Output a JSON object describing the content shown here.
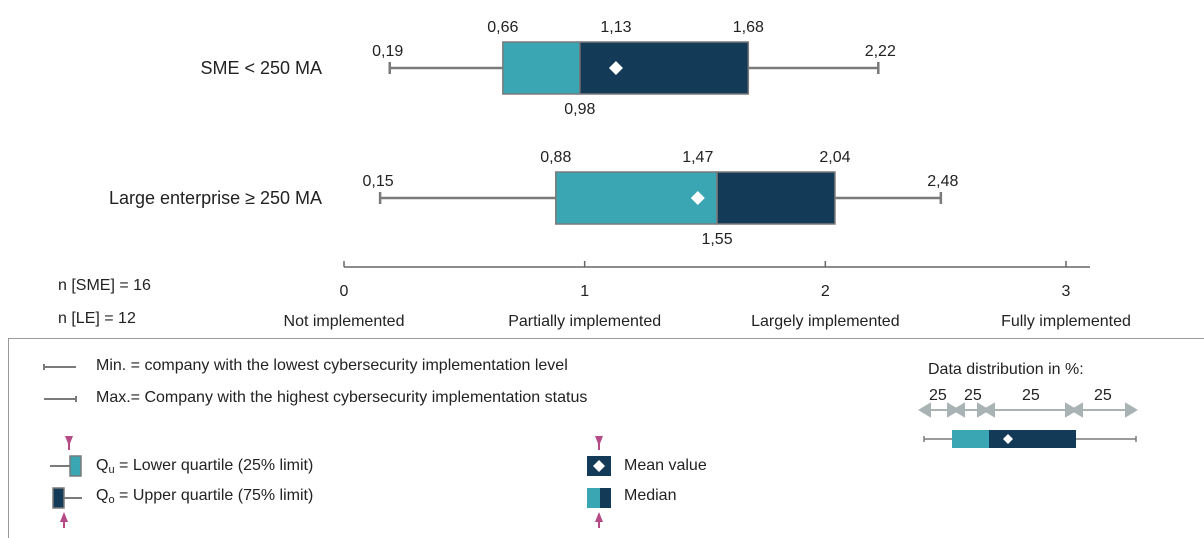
{
  "chart_data": {
    "type": "boxplot",
    "x_range": [
      0,
      3
    ],
    "x_ticks": [
      {
        "value": 0,
        "number": "0",
        "label": "Not implemented"
      },
      {
        "value": 1,
        "number": "1",
        "label": "Partially implemented"
      },
      {
        "value": 2,
        "number": "2",
        "label": "Largely implemented"
      },
      {
        "value": 3,
        "number": "3",
        "label": "Fully implemented"
      }
    ],
    "series": [
      {
        "name": "SME < 250 MA",
        "min": 0.19,
        "q1": 0.66,
        "median": 0.98,
        "q3": 1.68,
        "max": 2.22,
        "mean": 1.13,
        "labels": {
          "min": "0,19",
          "q1": "0,66",
          "median": "0,98",
          "q3": "1,68",
          "max": "2,22",
          "mean": "1,13"
        }
      },
      {
        "name": "Large enterprise ≥ 250 MA",
        "min": 0.15,
        "q1": 0.88,
        "median": 1.55,
        "q3": 2.04,
        "max": 2.48,
        "mean": 1.47,
        "labels": {
          "min": "0,15",
          "q1": "0,88",
          "median": "1,55",
          "q3": "2,04",
          "max": "2,48",
          "mean": "1,47"
        }
      }
    ],
    "sample_sizes": [
      "n [SME] = 16",
      "n [LE] = 12"
    ],
    "colors": {
      "lower_box": "#3aa6b4",
      "upper_box": "#133a56",
      "whisker": "#7a7a7a",
      "axis": "#666666",
      "marker": "#b44a86",
      "mean_marker": "#ffffff"
    }
  },
  "legend": {
    "min_text": "Min. = company with the lowest cybersecurity implementation level",
    "max_text": "Max.= Company with the highest cybersecurity implementation status",
    "qu_symbol": "Q",
    "qu_sub": "u",
    "qu_text": " = Lower quartile (25% limit)",
    "qo_symbol": "Q",
    "qo_sub": "o",
    "qo_text": " = Upper quartile (75% limit)",
    "mean_text": "Mean value",
    "median_text": "Median",
    "distribution_title": "Data distribution in %:",
    "distribution_values": [
      "25",
      "25",
      "25",
      "25"
    ]
  }
}
